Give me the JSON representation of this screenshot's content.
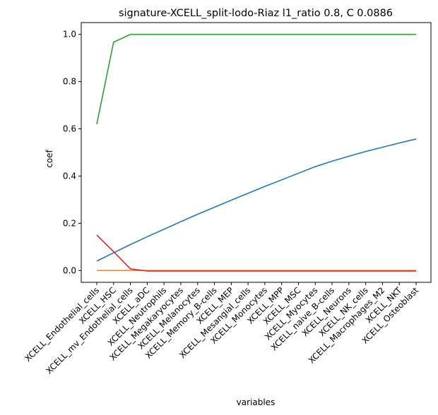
{
  "chart_data": {
    "type": "line",
    "title": "signature-XCELL_split-lodo-Riaz l1_ratio 0.8, C 0.0886",
    "xlabel": "variables",
    "ylabel": "coef",
    "ylim": [
      -0.05,
      1.05
    ],
    "yticks": [
      0.0,
      0.2,
      0.4,
      0.6,
      0.8,
      1.0
    ],
    "ytick_labels": [
      "0.0",
      "0.2",
      "0.4",
      "0.6",
      "0.8",
      "1.0"
    ],
    "grid": false,
    "categories": [
      "XCELL_Endothelial_cells",
      "XCELL_HSC",
      "XCELL_mv_Endothelial_cells",
      "XCELL_aDC",
      "XCELL_Neutrophils",
      "XCELL_Megakaryocytes",
      "XCELL_Melanocytes",
      "XCELL_Memory_B-cells",
      "XCELL_MEP",
      "XCELL_Mesangial_cells",
      "XCELL_Monocytes",
      "XCELL_MPP",
      "XCELL_MSC",
      "XCELL_Myocytes",
      "XCELL_naive_B-cells",
      "XCELL_Neurons",
      "XCELL_NK_cells",
      "XCELL_Macrophages_M2",
      "XCELL_NKT",
      "XCELL_Osteoblast"
    ],
    "series": [
      {
        "color": "#1f77b4",
        "values": [
          0.04,
          0.075,
          0.11,
          0.143,
          0.175,
          0.207,
          0.238,
          0.268,
          0.298,
          0.327,
          0.356,
          0.384,
          0.412,
          0.44,
          0.463,
          0.484,
          0.504,
          0.522,
          0.54,
          0.557
        ]
      },
      {
        "color": "#ff7f0e",
        "values": [
          0.0,
          0.0,
          0.0,
          0.0,
          0.0,
          0.0,
          0.0,
          0.0,
          0.0,
          0.0,
          0.0,
          0.0,
          0.0,
          0.0,
          0.0,
          0.0,
          0.0,
          0.0,
          0.0,
          0.0
        ]
      },
      {
        "color": "#2ca02c",
        "values": [
          0.62,
          0.967,
          1.0,
          1.0,
          1.0,
          1.0,
          1.0,
          1.0,
          1.0,
          1.0,
          1.0,
          1.0,
          1.0,
          1.0,
          1.0,
          1.0,
          1.0,
          1.0,
          1.0,
          1.0
        ]
      },
      {
        "color": "#d62728",
        "values": [
          0.15,
          0.08,
          0.007,
          -0.002,
          -0.002,
          -0.002,
          -0.002,
          -0.002,
          -0.002,
          -0.002,
          -0.002,
          -0.002,
          -0.002,
          -0.002,
          -0.002,
          -0.002,
          -0.002,
          -0.002,
          -0.002,
          -0.002
        ]
      }
    ]
  }
}
